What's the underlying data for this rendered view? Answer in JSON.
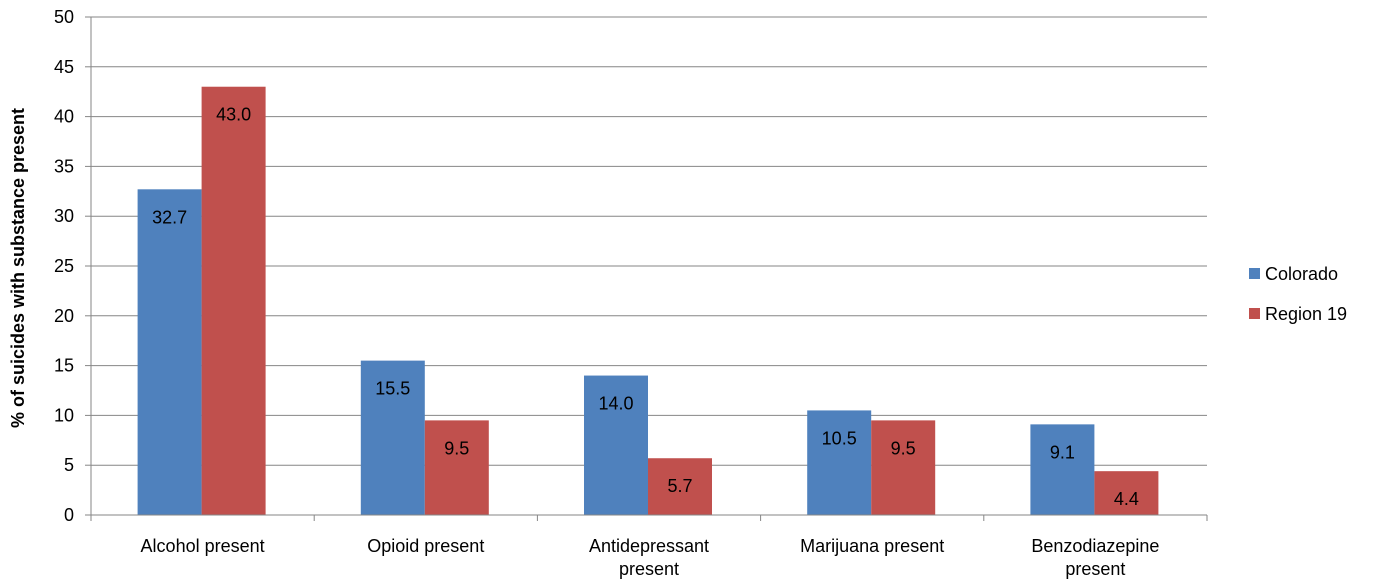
{
  "chart_data": {
    "type": "bar",
    "categories": [
      [
        "Alcohol present"
      ],
      [
        "Opioid present"
      ],
      [
        "Antidepressant",
        "present"
      ],
      [
        "Marijuana present"
      ],
      [
        "Benzodiazepine",
        "present"
      ]
    ],
    "series": [
      {
        "name": "Colorado",
        "color": "#4F81BD",
        "values": [
          32.7,
          15.5,
          14.0,
          10.5,
          9.1
        ],
        "labels": [
          "32.7",
          "15.5",
          "14.0",
          "10.5",
          "9.1"
        ]
      },
      {
        "name": "Region 19",
        "color": "#C0504D",
        "values": [
          43.0,
          9.5,
          5.7,
          9.5,
          4.4
        ],
        "labels": [
          "43.0",
          "9.5",
          "5.7",
          "9.5",
          "4.4"
        ]
      }
    ],
    "ylabel": "% of suicides with substance present",
    "xlabel": "",
    "ylim": [
      0,
      50
    ],
    "yticks": [
      0,
      5,
      10,
      15,
      20,
      25,
      30,
      35,
      40,
      45,
      50
    ],
    "grid": true,
    "legend": "right"
  }
}
